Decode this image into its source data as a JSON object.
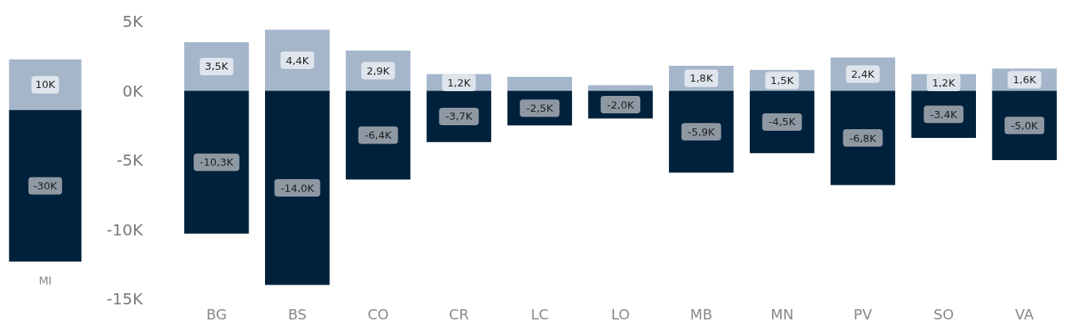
{
  "chart_data": [
    {
      "type": "bar",
      "stacked": true,
      "categories": [
        "MI"
      ],
      "series": [
        {
          "color": "#a5b6cb",
          "values": [
            10000
          ],
          "value_labels": [
            "10K"
          ]
        },
        {
          "color": "#00213b",
          "values": [
            -30000
          ],
          "value_labels": [
            "-30K"
          ]
        }
      ]
    },
    {
      "type": "bar",
      "stacked": true,
      "categories": [
        "BG",
        "BS",
        "CO",
        "CR",
        "LC",
        "LO",
        "MB",
        "MN",
        "PV",
        "SO",
        "VA"
      ],
      "ylim": [
        -15000,
        5000
      ],
      "yticks": [
        {
          "value": -15000,
          "label": "-15K"
        },
        {
          "value": -10000,
          "label": "-10K"
        },
        {
          "value": -5000,
          "label": "-5K"
        },
        {
          "value": 0,
          "label": "0K"
        },
        {
          "value": 5000,
          "label": "5K"
        }
      ],
      "series": [
        {
          "color": "#a5b6cb",
          "values": [
            3500,
            4400,
            2900,
            1200,
            1000,
            400,
            1800,
            1500,
            2400,
            1200,
            1600
          ],
          "value_labels": [
            "3,5K",
            "4,4K",
            "2,9K",
            "1,2K",
            null,
            null,
            "1,8K",
            "1,5K",
            "2,4K",
            "1,2K",
            "1,6K"
          ]
        },
        {
          "color": "#00213b",
          "values": [
            -10300,
            -14000,
            -6400,
            -3700,
            -2500,
            -2000,
            -5900,
            -4500,
            -6800,
            -3400,
            -5000
          ],
          "value_labels": [
            "-10,3K",
            "-14,0K",
            "-6,4K",
            "-3,7K",
            "-2,5K",
            "-2,0K",
            "-5,9K",
            "-4,5K",
            "-6,8K",
            "-3,4K",
            "-5,0K"
          ]
        }
      ]
    }
  ]
}
